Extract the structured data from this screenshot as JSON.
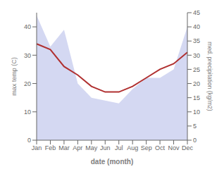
{
  "chart_data": {
    "type": "line",
    "categories": [
      "Jan",
      "Feb",
      "Mar",
      "Apr",
      "May",
      "Jun",
      "Jul",
      "Aug",
      "Sep",
      "Oct",
      "Nov",
      "Dec"
    ],
    "xlabel": "date (month)",
    "ylabel": "max temp (C)",
    "y2label": "med. precipitation (kg/m2)",
    "series": [
      {
        "type": "area",
        "color": "#b0b8e8",
        "axis": "y2",
        "values": [
          44,
          33,
          39,
          20,
          15,
          14,
          13,
          18,
          22,
          22,
          25,
          40
        ]
      },
      {
        "type": "line",
        "color": "#b03030",
        "values": [
          34,
          32,
          26,
          23,
          19,
          17,
          17,
          19,
          22,
          25,
          27,
          31
        ]
      }
    ],
    "ylim": [
      0,
      45
    ],
    "yticks": [
      0,
      10,
      20,
      30,
      40
    ],
    "y2lim": [
      0,
      45
    ],
    "y2ticks": [
      0,
      5,
      10,
      15,
      20,
      25,
      30,
      35,
      40,
      45
    ],
    "grid": false
  }
}
